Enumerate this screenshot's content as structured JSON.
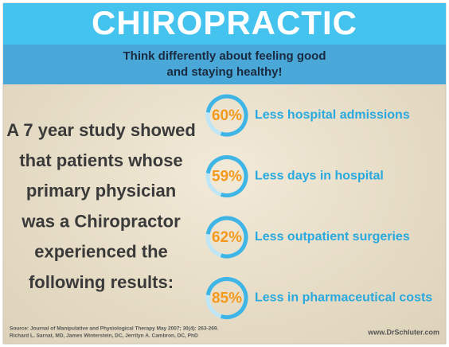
{
  "header": {
    "title": "CHIROPRACTIC",
    "subtitle_lines": [
      "Think differently about feeling good",
      "and staying healthy!"
    ]
  },
  "study_lines": [
    "A 7 year study showed",
    "that patients whose",
    "primary physician",
    "was a Chiropractor",
    "experienced the",
    "following results:"
  ],
  "stats": [
    {
      "percent": "60%",
      "label": "Less hospital admissions"
    },
    {
      "percent": "59%",
      "label": "Less days in hospital"
    },
    {
      "percent": "62%",
      "label": "Less outpatient surgeries"
    },
    {
      "percent": "85%",
      "label": "Less in pharmaceutical costs"
    }
  ],
  "footer": {
    "source_lines": [
      "Source: Journal of Manipulative and Physiological Therapy May 2007; 30(4): 263-269.",
      "Richard L. Sarnat, MD, James Winterstein, DC, Jerrilyn A. Cambron, DC, PhD"
    ],
    "website": "www.DrSchluter.com"
  }
}
